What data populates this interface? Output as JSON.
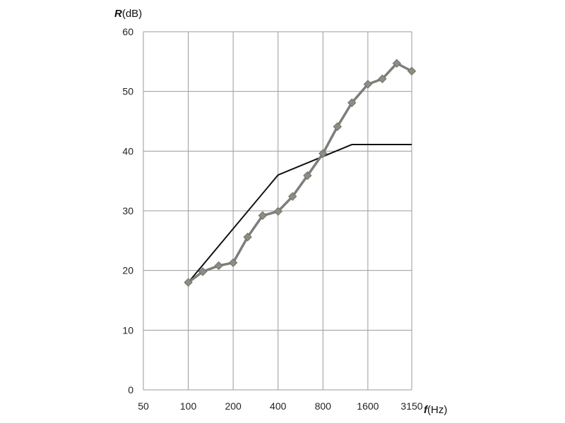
{
  "chart_data": {
    "type": "line",
    "title": "",
    "ylabel": {
      "symbol": "R",
      "unit": "(dB)"
    },
    "xlabel": {
      "symbol": "f",
      "unit": "(Hz)"
    },
    "x_scale": "log",
    "x_tick_labels": [
      "50",
      "100",
      "200",
      "400",
      "800",
      "1600",
      "3150"
    ],
    "x_ticks": [
      50,
      100,
      200,
      400,
      800,
      1600,
      3150
    ],
    "xlim": [
      50,
      3150
    ],
    "ylim": [
      0,
      60
    ],
    "y_ticks": [
      0,
      10,
      20,
      30,
      40,
      50,
      60
    ],
    "grid": true,
    "legend": "none",
    "series": [
      {
        "style": "thick-gray-diamond-markers",
        "color": "#7b7f7b",
        "marker_color": "#8a8f82",
        "points": [
          {
            "x": 100,
            "y": 18
          },
          {
            "x": 125,
            "y": 19.8
          },
          {
            "x": 160,
            "y": 20.8
          },
          {
            "x": 200,
            "y": 21.3
          },
          {
            "x": 250,
            "y": 25.6
          },
          {
            "x": 315,
            "y": 29.2
          },
          {
            "x": 400,
            "y": 29.9
          },
          {
            "x": 500,
            "y": 32.4
          },
          {
            "x": 630,
            "y": 35.9
          },
          {
            "x": 800,
            "y": 39.6
          },
          {
            "x": 1000,
            "y": 44.1
          },
          {
            "x": 1250,
            "y": 48.1
          },
          {
            "x": 1600,
            "y": 51.2
          },
          {
            "x": 2000,
            "y": 52.1
          },
          {
            "x": 2500,
            "y": 54.7
          },
          {
            "x": 3150,
            "y": 53.4
          }
        ]
      },
      {
        "style": "thin-black-line",
        "color": "#111111",
        "points": [
          {
            "x": 100,
            "y": 18
          },
          {
            "x": 400,
            "y": 36
          },
          {
            "x": 1250,
            "y": 41.1
          },
          {
            "x": 3150,
            "y": 41.1
          }
        ]
      }
    ]
  }
}
